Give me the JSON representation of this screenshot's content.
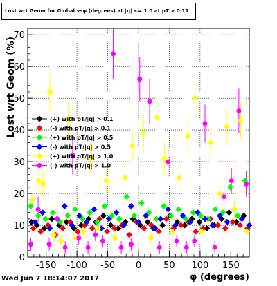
{
  "chart_data": {
    "type": "scatter",
    "title": "Lost wrt Geom for Global vsφ (degrees) at |η| <= 1.0 at pT > 0.11",
    "xlabel": "φ (degrees)",
    "ylabel": "Lost wrt Geom (%)",
    "xlim": [
      -180,
      180
    ],
    "ylim": [
      0,
      72
    ],
    "x_ticks": [
      -150,
      -100,
      -50,
      0,
      50,
      100,
      150
    ],
    "y_ticks": [
      0,
      10,
      20,
      30,
      40,
      50,
      60,
      70
    ],
    "grid": true,
    "legend_position": "middle-left",
    "series": [
      {
        "name": "(+) with pT/|q| > 0.1",
        "color": "#000000",
        "marker": "diamond",
        "x": [
          -174,
          -165,
          -153,
          -141,
          -129,
          -117,
          -105,
          -93,
          -81,
          -69,
          -57,
          -45,
          -33,
          -21,
          -9,
          3,
          15,
          27,
          39,
          51,
          63,
          75,
          87,
          99,
          111,
          123,
          135,
          147,
          159,
          171
        ],
        "y": [
          11,
          10,
          9,
          12,
          10,
          11,
          9,
          10,
          12,
          11,
          13,
          10,
          9,
          11,
          12,
          10,
          11,
          9,
          10,
          13,
          11,
          10,
          12,
          11,
          9,
          10,
          12,
          14,
          11,
          13
        ]
      },
      {
        "name": "(-) with pT/|q| > 0.1",
        "color": "#ff0000",
        "marker": "diamond",
        "x": [
          -171,
          -159,
          -147,
          -135,
          -123,
          -111,
          -99,
          -87,
          -75,
          -63,
          -51,
          -39,
          -27,
          -15,
          -3,
          9,
          21,
          33,
          45,
          57,
          69,
          81,
          93,
          105,
          117,
          129,
          141,
          153,
          165,
          177
        ],
        "y": [
          9,
          8,
          10,
          7,
          9,
          11,
          8,
          10,
          9,
          12,
          8,
          9,
          10,
          7,
          11,
          9,
          10,
          8,
          12,
          9,
          10,
          11,
          8,
          9,
          12,
          10,
          9,
          11,
          10,
          9
        ]
      },
      {
        "name": "(+) with pT/|q| > 0.5",
        "color": "#00ff00",
        "marker": "diamond",
        "x": [
          -175,
          -163,
          -151,
          -139,
          -127,
          -115,
          -103,
          -91,
          -79,
          -67,
          -55,
          -43,
          -31,
          -19,
          -7,
          5,
          17,
          29,
          41,
          53,
          65,
          77,
          89,
          101,
          113,
          125,
          137,
          149,
          161,
          173
        ],
        "y": [
          16,
          13,
          12,
          14,
          11,
          13,
          15,
          12,
          14,
          11,
          16,
          13,
          12,
          19,
          13,
          17,
          14,
          12,
          16,
          13,
          15,
          12,
          14,
          13,
          12,
          15,
          14,
          22,
          13,
          24
        ]
      },
      {
        "name": "(-) with pT/|q| > 0.5",
        "color": "#0000ff",
        "marker": "diamond",
        "x": [
          -168,
          -156,
          -144,
          -132,
          -120,
          -108,
          -96,
          -84,
          -72,
          -60,
          -48,
          -36,
          -24,
          -12,
          0,
          12,
          24,
          36,
          48,
          60,
          72,
          84,
          96,
          108,
          120,
          132,
          144,
          156,
          168,
          180
        ],
        "y": [
          11,
          14,
          9,
          12,
          16,
          10,
          13,
          11,
          15,
          9,
          12,
          14,
          10,
          16,
          11,
          13,
          9,
          12,
          15,
          10,
          13,
          11,
          14,
          12,
          10,
          13,
          11,
          15,
          12,
          10
        ]
      },
      {
        "name": "(+) with pT/|q| > 1.0",
        "color": "#ffff00",
        "marker": "diamond",
        "x": [
          -172,
          -162,
          -155,
          -144,
          -138,
          -126,
          -114,
          -103,
          -90,
          -78,
          -66,
          -52,
          -38,
          -22,
          -10,
          8,
          20,
          30,
          42,
          55,
          66,
          80,
          92,
          103,
          117,
          132,
          143,
          156,
          166,
          176
        ],
        "y": [
          18,
          24,
          23,
          52,
          7,
          5,
          43,
          6,
          8,
          31,
          9,
          24,
          6,
          25,
          35,
          39,
          6,
          44,
          31,
          8,
          25,
          38,
          50,
          8,
          36,
          20,
          41,
          15,
          43,
          8
        ],
        "err": [
          3,
          4,
          4,
          6,
          2,
          2,
          6,
          2,
          2,
          5,
          2,
          4,
          2,
          4,
          5,
          6,
          2,
          6,
          5,
          2,
          4,
          6,
          7,
          2,
          5,
          4,
          6,
          3,
          6,
          2
        ]
      },
      {
        "name": "(-) with pT/|q| > 1.0",
        "color": "#ff00ff",
        "marker": "circle",
        "x": [
          -175,
          -163,
          -145,
          -132,
          -119,
          -107,
          -97,
          -82,
          -70,
          -58,
          -41,
          -28,
          -12,
          2,
          18,
          34,
          48,
          62,
          78,
          91,
          108,
          124,
          139,
          151,
          163,
          175
        ],
        "y": [
          4,
          15,
          4,
          12,
          3,
          32,
          6,
          3,
          7,
          5,
          64,
          3,
          4,
          56,
          49,
          3,
          30,
          5,
          3,
          5,
          42,
          3,
          19,
          24,
          46,
          23
        ],
        "err": [
          2,
          4,
          2,
          3,
          2,
          6,
          2,
          2,
          2,
          2,
          8,
          2,
          2,
          7,
          7,
          2,
          5,
          2,
          2,
          2,
          6,
          2,
          4,
          4,
          7,
          4
        ]
      }
    ]
  },
  "footer": "Wed Jun  7 18:14:07 2017"
}
